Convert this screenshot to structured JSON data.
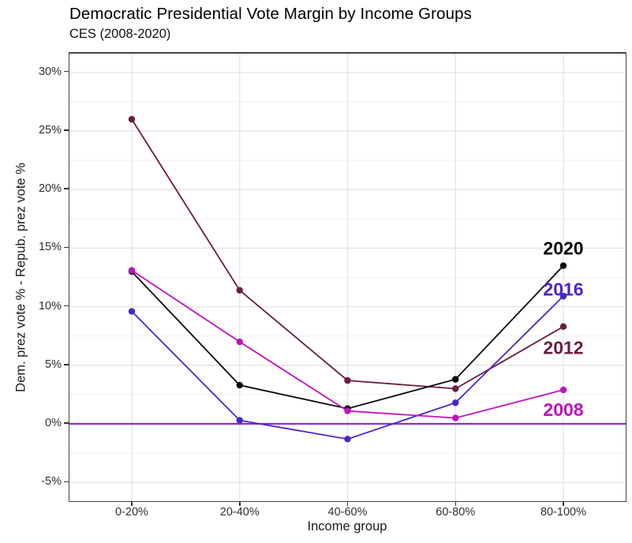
{
  "chart_data": {
    "type": "line",
    "title": "Democratic Presidential Vote Margin by Income Groups",
    "subtitle": "CES (2008-2020)",
    "xlabel": "Income group",
    "ylabel": "Dem. prez vote % - Repub. prez vote %",
    "categories": [
      "0-20%",
      "20-40%",
      "40-60%",
      "60-80%",
      "80-100%"
    ],
    "series": [
      {
        "name": "2012",
        "color": "#6b1c40",
        "values": [
          26.0,
          11.4,
          3.7,
          3.0,
          8.3
        ]
      },
      {
        "name": "2016",
        "color": "#4b24cc",
        "values": [
          9.6,
          0.3,
          -1.3,
          1.8,
          10.9
        ]
      },
      {
        "name": "2020",
        "color": "#0a0a0a",
        "values": [
          13.0,
          3.3,
          1.3,
          3.8,
          13.5
        ]
      },
      {
        "name": "2008",
        "color": "#c013c0",
        "values": [
          13.1,
          7.0,
          1.1,
          0.5,
          2.9
        ]
      }
    ],
    "y_ticks": [
      30,
      25,
      20,
      15,
      10,
      5,
      0,
      -5
    ],
    "y_tick_suffix": "%",
    "ylim": [
      -6.6,
      31.6
    ],
    "grid": "major+minor, light gray on white",
    "legend_position": "direct labels at right of lines",
    "reference_line": {
      "y": 0,
      "color": "#8a2be2"
    },
    "annotations": [
      {
        "text": "2020",
        "series": "2020",
        "color": "#0a0a0a",
        "x_index": 4,
        "y": 15.0
      },
      {
        "text": "2016",
        "series": "2016",
        "color": "#4b24cc",
        "x_index": 4,
        "y": 11.5
      },
      {
        "text": "2012",
        "series": "2012",
        "color": "#6b1c40",
        "x_index": 4,
        "y": 6.5
      },
      {
        "text": "2008",
        "series": "2008",
        "color": "#c013c0",
        "x_index": 4,
        "y": 1.2
      }
    ]
  }
}
